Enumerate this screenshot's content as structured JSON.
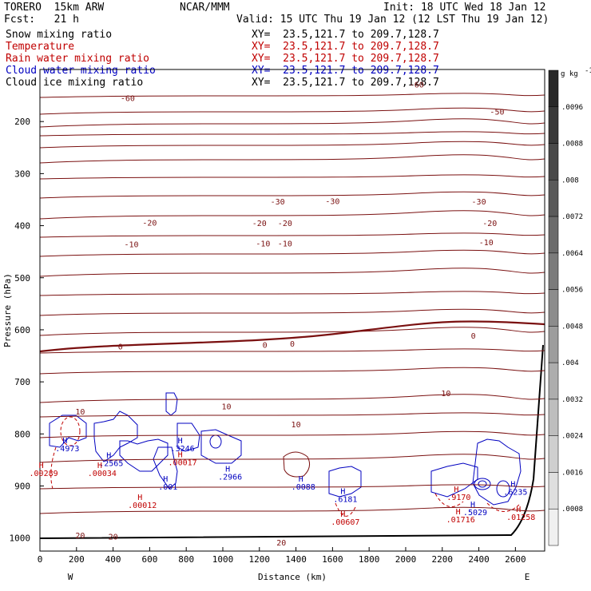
{
  "header": {
    "model": "TORERO  15km ARW",
    "center": "NCAR/MMM",
    "init": "Init: 18 UTC Wed 18 Jan 12",
    "fcst": "Fcst:   21 h",
    "valid": "Valid: 15 UTC Thu 19 Jan 12 (12 LST Thu 19 Jan 12)"
  },
  "legend": [
    {
      "name": "Snow mixing ratio",
      "xy": "XY=  23.5,121.7 to 209.7,128.7",
      "color": "#000000"
    },
    {
      "name": "Temperature",
      "xy": "XY=  23.5,121.7 to 209.7,128.7",
      "color": "#c00000"
    },
    {
      "name": "Rain water mixing ratio",
      "xy": "XY=  23.5,121.7 to 209.7,128.7",
      "color": "#c00000"
    },
    {
      "name": "Cloud water mixing ratio",
      "xy": "XY=  23.5,121.7 to 209.7,128.7",
      "color": "#0000c0"
    },
    {
      "name": "Cloud ice mixing ratio",
      "xy": "XY=  23.5,121.7 to 209.7,128.7",
      "color": "#000000"
    }
  ],
  "chart_data": {
    "type": "contour",
    "xlabel": "Distance (km)",
    "ylabel": "Pressure (hPa)",
    "xlim": [
      0,
      2760
    ],
    "ylim": [
      1025,
      100
    ],
    "xticks": [
      0,
      200,
      400,
      600,
      800,
      1000,
      1200,
      1400,
      1600,
      1800,
      2000,
      2200,
      2400,
      2600
    ],
    "yticks": [
      200,
      300,
      400,
      500,
      600,
      700,
      800,
      900,
      1000
    ],
    "x_endpoints": [
      "W",
      "E"
    ],
    "colorbar": {
      "unit": "g kg",
      "unit_exp": "-1",
      "labels": [
        ".0096",
        ".0088",
        ".008",
        ".0072",
        ".0064",
        ".0056",
        ".0048",
        ".004",
        ".0032",
        ".0024",
        ".0016",
        ".0008"
      ]
    },
    "temperature_contours": [
      {
        "value": -60,
        "label_positions": [
          [
            480,
            156
          ],
          [
            2060,
            130
          ]
        ]
      },
      {
        "value": -50,
        "label_positions": [
          [
            2500,
            182
          ]
        ]
      },
      {
        "value": -30,
        "label_positions": [
          [
            1300,
            355
          ],
          [
            1600,
            354
          ],
          [
            2400,
            355
          ]
        ]
      },
      {
        "value": -20,
        "label_positions": [
          [
            600,
            395
          ],
          [
            1200,
            396
          ],
          [
            1340,
            396
          ],
          [
            2460,
            396
          ]
        ]
      },
      {
        "value": -10,
        "label_positions": [
          [
            500,
            437
          ],
          [
            1220,
            435
          ],
          [
            1340,
            435
          ],
          [
            2440,
            433
          ]
        ]
      },
      {
        "value": 0,
        "label_positions": [
          [
            440,
            633
          ],
          [
            1230,
            630
          ],
          [
            1380,
            628
          ],
          [
            2370,
            612
          ]
        ]
      },
      {
        "value": 10,
        "label_positions": [
          [
            220,
            758
          ],
          [
            1020,
            748
          ],
          [
            1400,
            783
          ],
          [
            2220,
            723
          ]
        ]
      },
      {
        "value": 20,
        "label_positions": [
          [
            220,
            996
          ],
          [
            400,
            998
          ],
          [
            1320,
            1010
          ]
        ]
      }
    ],
    "maxima": [
      {
        "label": "4973",
        "species": "cloud water",
        "x": 150,
        "p": 833
      },
      {
        "label": "2565",
        "species": "cloud water",
        "x": 390,
        "p": 862
      },
      {
        "label": "3246",
        "species": "cloud water",
        "x": 780,
        "p": 833
      },
      {
        "label": "001",
        "species": "cloud water",
        "x": 700,
        "p": 907
      },
      {
        "label": "2966",
        "species": "cloud water",
        "x": 1040,
        "p": 888
      },
      {
        "label": "0088",
        "species": "cloud water",
        "x": 1440,
        "p": 907
      },
      {
        "label": "6181",
        "species": "cloud water",
        "x": 1670,
        "p": 931
      },
      {
        "label": "5029",
        "species": "cloud water",
        "x": 2380,
        "p": 956
      },
      {
        "label": "6235",
        "species": "cloud water",
        "x": 2600,
        "p": 917
      },
      {
        "label": "00289",
        "species": "rain water",
        "x": 20,
        "p": 881
      },
      {
        "label": "00034",
        "species": "rain water",
        "x": 340,
        "p": 881
      },
      {
        "label": "00017",
        "species": "rain water",
        "x": 780,
        "p": 860
      },
      {
        "label": "00012",
        "species": "rain water",
        "x": 560,
        "p": 942
      },
      {
        "label": "00607",
        "species": "rain water",
        "x": 1670,
        "p": 974
      },
      {
        "label": "9170",
        "species": "rain water",
        "x": 2290,
        "p": 927
      },
      {
        "label": "01716",
        "species": "rain water",
        "x": 2300,
        "p": 970
      },
      {
        "label": "01258",
        "species": "rain water",
        "x": 2630,
        "p": 965
      }
    ]
  }
}
